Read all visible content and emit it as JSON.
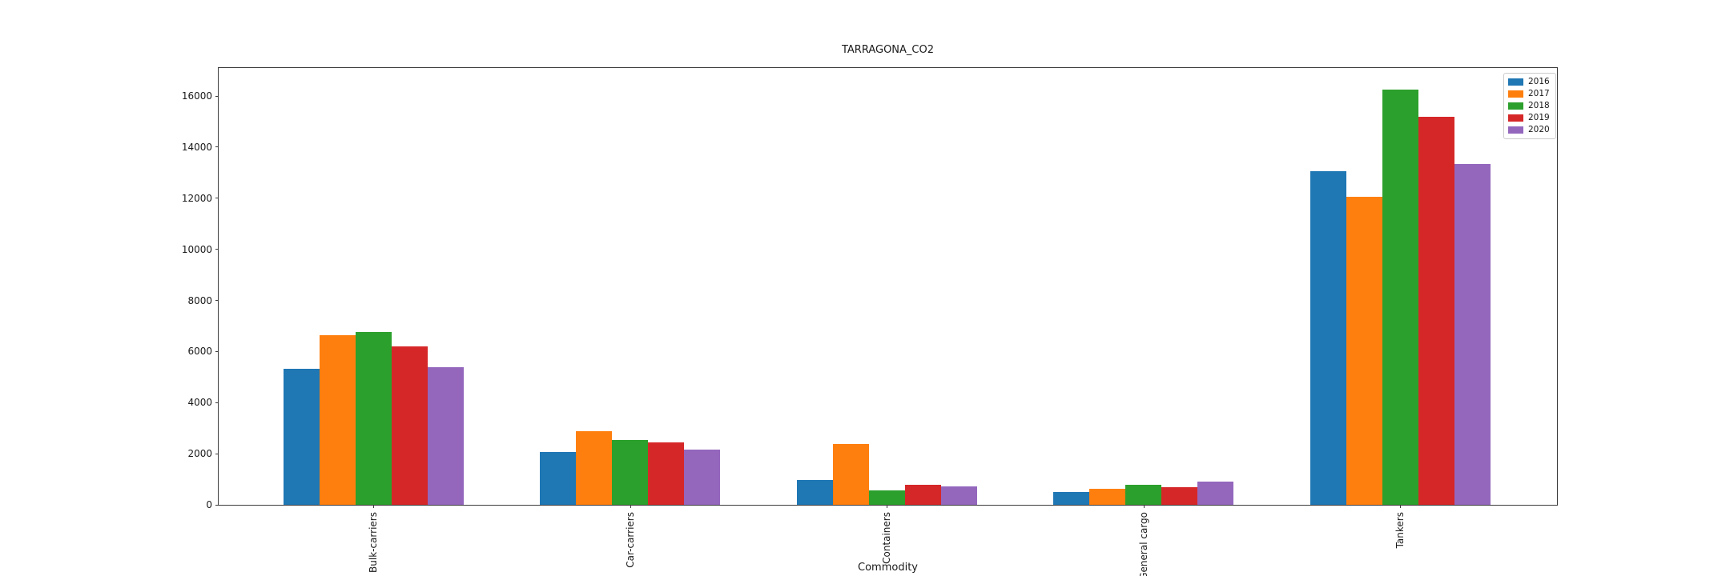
{
  "figure": {
    "background": "#ffffff",
    "text_color": "#1a1a1a",
    "spine_color": "#3c3c3c"
  },
  "chart_data": {
    "type": "bar",
    "title": "TARRAGONA_CO2",
    "xlabel": "Commodity",
    "ylabel": "",
    "categories": [
      "Bulk-carriers",
      "Car-carriers",
      "Containers",
      "General cargo",
      "Tankers"
    ],
    "series": [
      {
        "name": "2016",
        "color": "#1f77b4",
        "values": [
          5330,
          2070,
          970,
          500,
          13050
        ]
      },
      {
        "name": "2017",
        "color": "#ff7f0e",
        "values": [
          6650,
          2870,
          2390,
          620,
          12050
        ]
      },
      {
        "name": "2018",
        "color": "#2ca02c",
        "values": [
          6780,
          2540,
          560,
          780,
          16250
        ]
      },
      {
        "name": "2019",
        "color": "#d62728",
        "values": [
          6210,
          2440,
          770,
          700,
          15200
        ]
      },
      {
        "name": "2020",
        "color": "#9467bd",
        "values": [
          5400,
          2170,
          730,
          920,
          13350
        ]
      }
    ],
    "ylim": [
      0,
      17100
    ],
    "yticks": [
      0,
      2000,
      4000,
      6000,
      8000,
      10000,
      12000,
      14000,
      16000
    ],
    "grid": false,
    "legend_position": "upper right",
    "x_tick_rotation": 90
  }
}
